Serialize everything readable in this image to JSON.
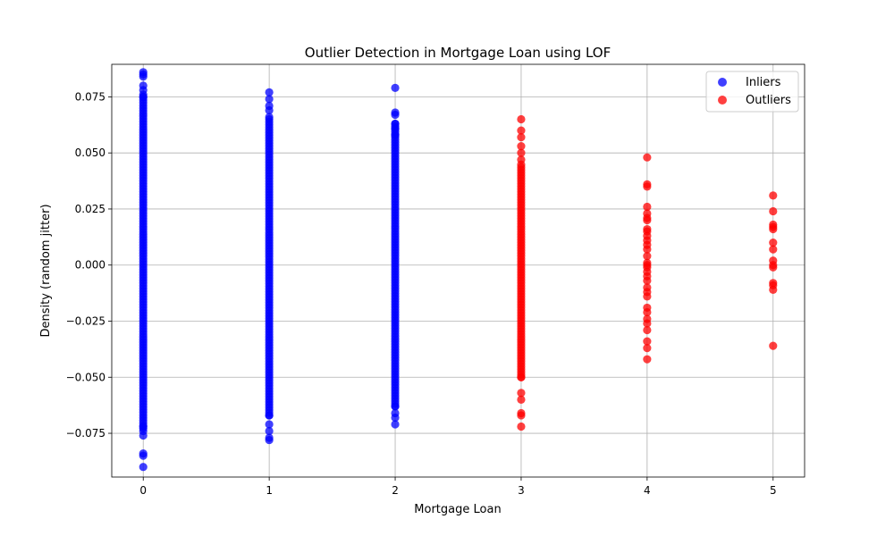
{
  "chart_data": {
    "type": "scatter",
    "title": "Outlier Detection in Mortgage Loan using LOF",
    "xlabel": "Mortgage Loan",
    "ylabel": "Density (random jitter)",
    "xlim": [
      -0.25,
      5.25
    ],
    "ylim": [
      -0.0945,
      0.0895
    ],
    "x_ticks": [
      0,
      1,
      2,
      3,
      4,
      5
    ],
    "x_tick_labels": [
      "0",
      "1",
      "2",
      "3",
      "4",
      "5"
    ],
    "y_ticks": [
      -0.075,
      -0.05,
      -0.025,
      0.0,
      0.025,
      0.05,
      0.075
    ],
    "y_tick_labels": [
      "−0.075",
      "−0.050",
      "−0.025",
      "0.000",
      "0.025",
      "0.050",
      "0.075"
    ],
    "grid": true,
    "legend_position": "top-right",
    "series": [
      {
        "name": "Inliers",
        "color": "#0000ff",
        "x_values": [
          0,
          1,
          2
        ],
        "y_ranges": [
          [
            -0.074,
            0.077
          ],
          [
            -0.067,
            0.066
          ],
          [
            -0.063,
            0.063
          ]
        ],
        "points": [
          [
            0,
            0.086
          ],
          [
            0,
            0.085
          ],
          [
            0,
            0.084
          ],
          [
            0,
            0.08
          ],
          [
            0,
            0.078
          ],
          [
            0,
            0.075
          ],
          [
            0,
            -0.076
          ],
          [
            0,
            -0.084
          ],
          [
            0,
            -0.085
          ],
          [
            0,
            -0.09
          ],
          [
            0,
            -0.072
          ],
          [
            1,
            0.077
          ],
          [
            1,
            0.074
          ],
          [
            1,
            0.071
          ],
          [
            1,
            0.069
          ],
          [
            1,
            0.066
          ],
          [
            1,
            -0.067
          ],
          [
            1,
            -0.071
          ],
          [
            1,
            -0.074
          ],
          [
            1,
            -0.077
          ],
          [
            1,
            -0.078
          ],
          [
            2,
            0.079
          ],
          [
            2,
            0.068
          ],
          [
            2,
            0.067
          ],
          [
            2,
            0.063
          ],
          [
            2,
            0.061
          ],
          [
            2,
            0.058
          ],
          [
            2,
            -0.063
          ],
          [
            2,
            -0.066
          ],
          [
            2,
            -0.068
          ],
          [
            2,
            -0.071
          ]
        ]
      },
      {
        "name": "Outliers",
        "color": "#ff0000",
        "x_values": [
          3
        ],
        "y_ranges": [
          [
            -0.05,
            0.045
          ]
        ],
        "points": [
          [
            3,
            0.065
          ],
          [
            3,
            0.06
          ],
          [
            3,
            0.057
          ],
          [
            3,
            0.053
          ],
          [
            3,
            0.05
          ],
          [
            3,
            0.047
          ],
          [
            3,
            -0.05
          ],
          [
            3,
            -0.057
          ],
          [
            3,
            -0.06
          ],
          [
            3,
            -0.066
          ],
          [
            3,
            -0.067
          ],
          [
            3,
            -0.072
          ],
          [
            4,
            0.048
          ],
          [
            4,
            0.036
          ],
          [
            4,
            0.035
          ],
          [
            4,
            0.026
          ],
          [
            4,
            0.023
          ],
          [
            4,
            0.021
          ],
          [
            4,
            0.02
          ],
          [
            4,
            0.016
          ],
          [
            4,
            0.015
          ],
          [
            4,
            0.013
          ],
          [
            4,
            0.011
          ],
          [
            4,
            0.009
          ],
          [
            4,
            0.007
          ],
          [
            4,
            0.004
          ],
          [
            4,
            0.001
          ],
          [
            4,
            0.0
          ],
          [
            4,
            -0.001
          ],
          [
            4,
            -0.003
          ],
          [
            4,
            -0.005
          ],
          [
            4,
            -0.007
          ],
          [
            4,
            -0.01
          ],
          [
            4,
            -0.012
          ],
          [
            4,
            -0.014
          ],
          [
            4,
            -0.019
          ],
          [
            4,
            -0.021
          ],
          [
            4,
            -0.024
          ],
          [
            4,
            -0.026
          ],
          [
            4,
            -0.029
          ],
          [
            4,
            -0.034
          ],
          [
            4,
            -0.037
          ],
          [
            4,
            -0.042
          ],
          [
            5,
            0.031
          ],
          [
            5,
            0.024
          ],
          [
            5,
            0.018
          ],
          [
            5,
            0.017
          ],
          [
            5,
            0.016
          ],
          [
            5,
            0.01
          ],
          [
            5,
            0.007
          ],
          [
            5,
            0.002
          ],
          [
            5,
            0.0
          ],
          [
            5,
            -0.001
          ],
          [
            5,
            -0.008
          ],
          [
            5,
            -0.009
          ],
          [
            5,
            -0.011
          ],
          [
            5,
            -0.036
          ]
        ]
      }
    ]
  }
}
